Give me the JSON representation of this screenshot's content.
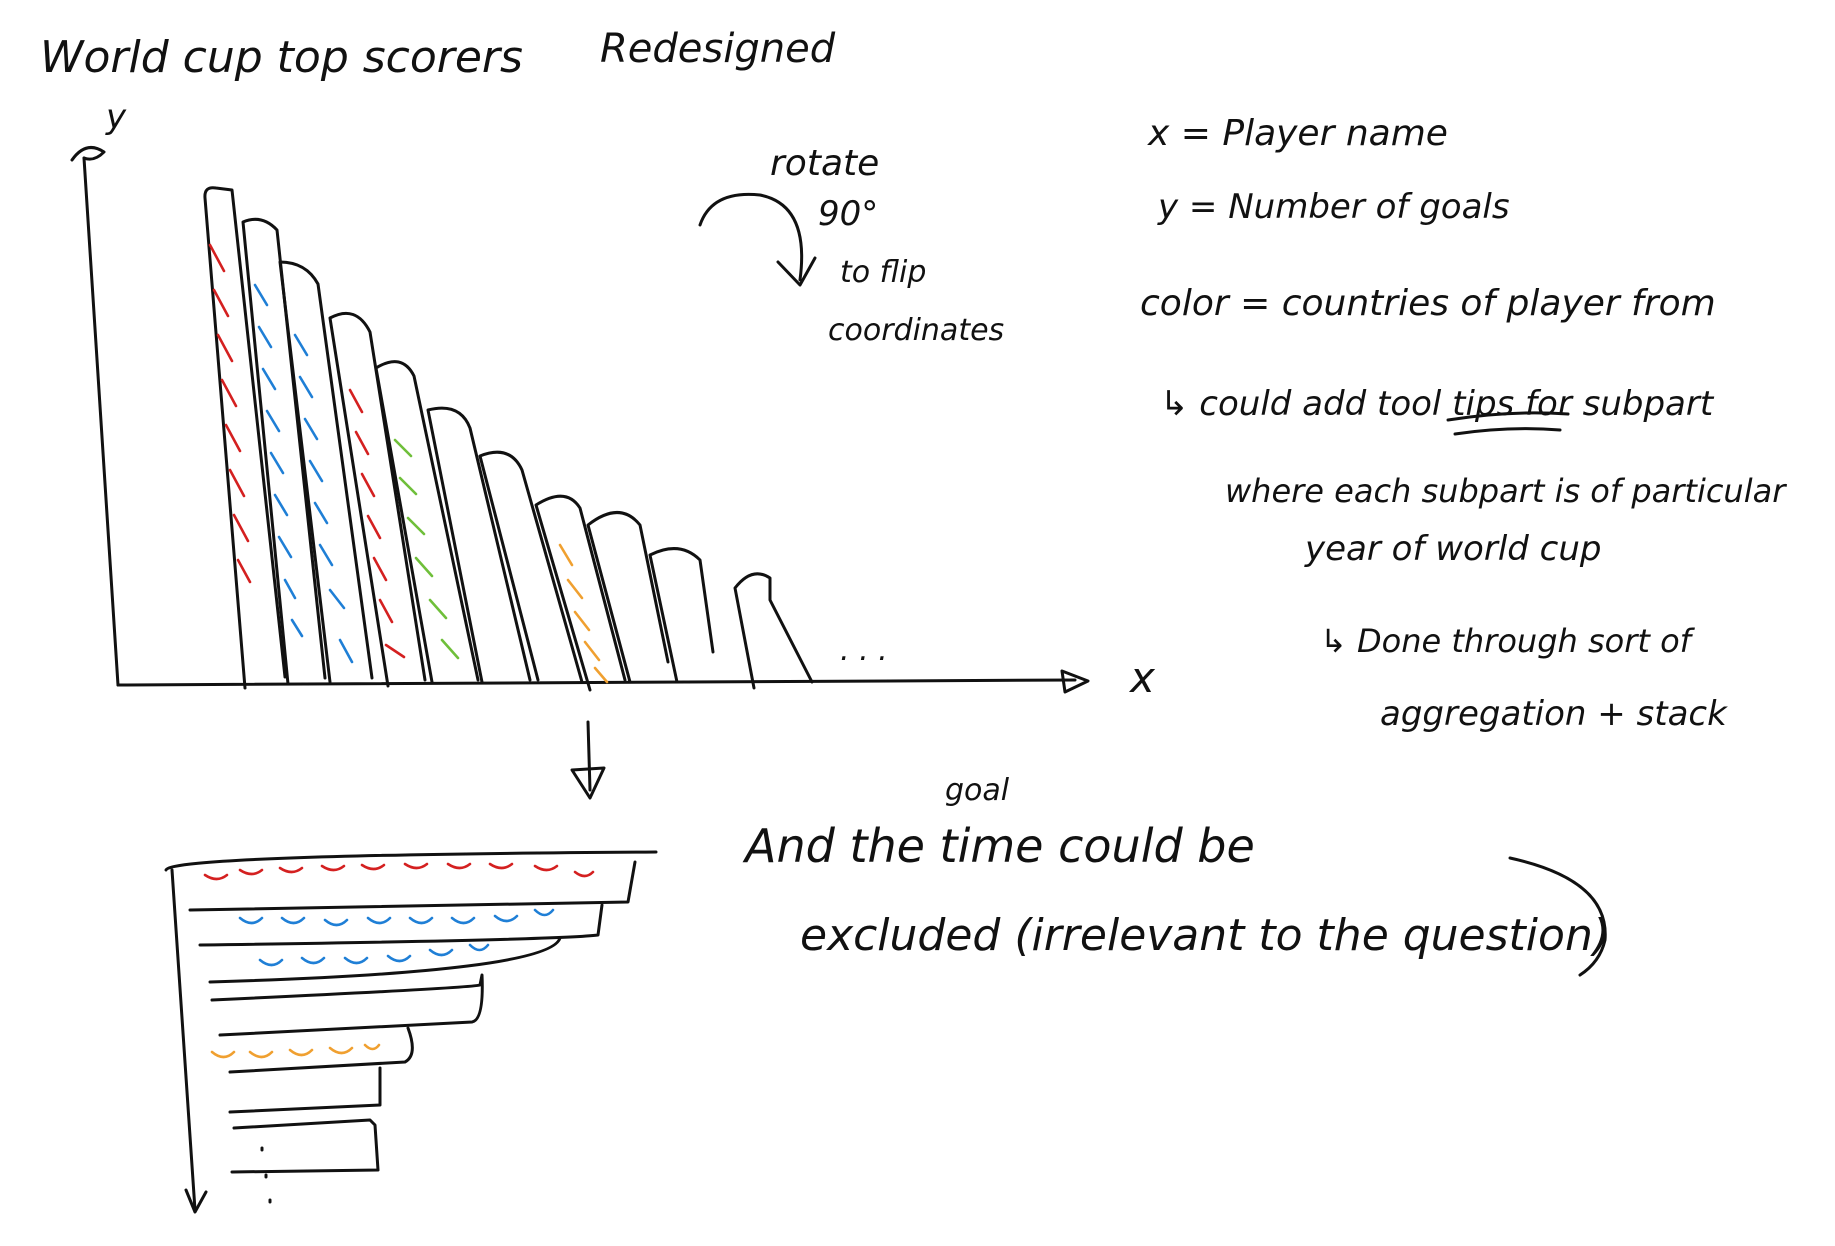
{
  "title": "World cup top scorers",
  "subtitle": "Redesigned",
  "axis": {
    "y_label": "y",
    "x_label": "x"
  },
  "rotate_note": {
    "line1": "rotate",
    "line2": "90°",
    "line3": "to flip",
    "line4": "coordinates"
  },
  "encodings": {
    "x": "x = Player name",
    "y": "y = Number of goals",
    "color": "color = countries of player from"
  },
  "notes": {
    "tooltip_1": "↳ could add tool tips for subpart",
    "tooltip_2": "where each subpart is of particular",
    "tooltip_3": "year of world cup",
    "aggregate_1": "↳ Done through sort of",
    "aggregate_2": "aggregation + stack"
  },
  "time_note": {
    "caret": "goal",
    "line1": "And the time could be",
    "line2": "excluded (irrelevant to the question)"
  },
  "ellipsis": ". . .",
  "colors": {
    "ink": "#111111",
    "red": "#d42020",
    "blue": "#1f7fd6",
    "green": "#6fbf3a",
    "orange": "#f0a030"
  }
}
